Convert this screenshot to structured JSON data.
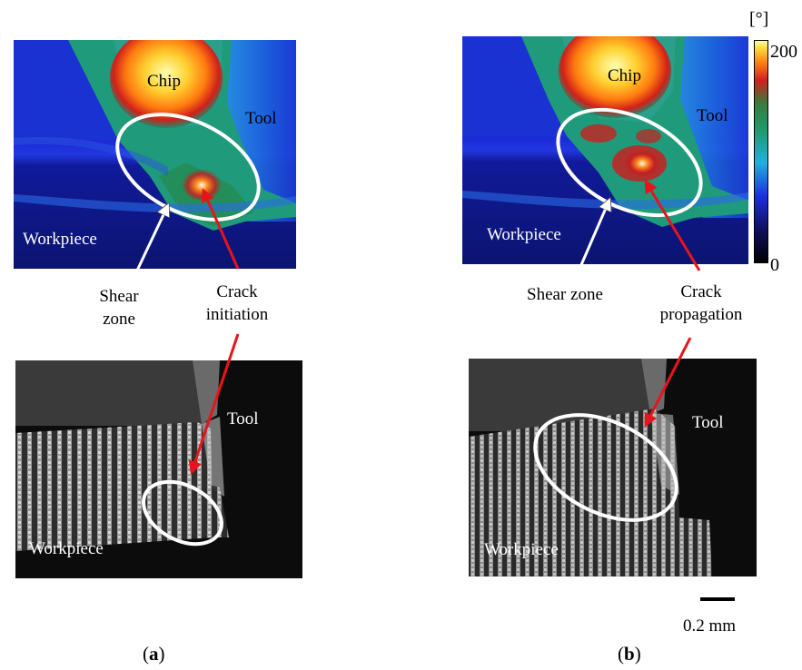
{
  "panel_a": {
    "thermal": {
      "chip": "Chip",
      "tool": "Tool",
      "workpiece": "Workpiece"
    },
    "callouts": {
      "shear_line1": "Shear",
      "shear_line2": "zone",
      "crack_line1": "Crack",
      "crack_line2": "initiation"
    },
    "micro": {
      "tool": "Tool",
      "workpiece": "Workpiece"
    },
    "caption_letter": "a"
  },
  "panel_b": {
    "thermal": {
      "chip": "Chip",
      "tool": "Tool",
      "workpiece": "Workpiece"
    },
    "callouts": {
      "shear": "Shear zone",
      "crack_line1": "Crack",
      "crack_line2": "propagation"
    },
    "micro": {
      "tool": "Tool",
      "workpiece": "Workpiece"
    },
    "caption_letter": "b"
  },
  "colorbar": {
    "unit": "[°]",
    "max": "200",
    "min": "0",
    "range": [
      0,
      200
    ]
  },
  "scalebar": {
    "label": "0.2 mm"
  },
  "colors": {
    "ellipse": "#ffffff",
    "crack_arrow": "#e8141c",
    "shear_arrow": "#ffffff"
  }
}
